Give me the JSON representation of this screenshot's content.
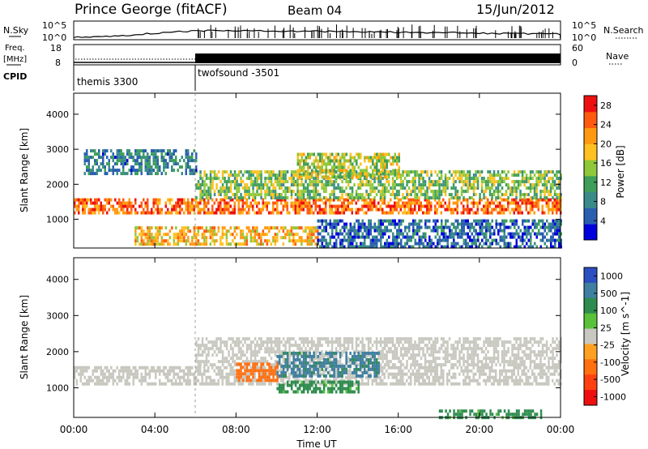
{
  "header": {
    "station": "Prince George (fitACF)",
    "beam": "Beam 04",
    "date": "15/Jun/2012"
  },
  "panels": {
    "nsky_label": "N.Sky",
    "nsky_ticks": [
      "10^5",
      "10^0"
    ],
    "nsearch_label": "N.Search",
    "freq_label_line1": "Freq.",
    "freq_label_line2": "[MHz]",
    "freq_ticks": [
      "18",
      "8"
    ],
    "nave_label": "Nave",
    "nave_ticks": [
      "60",
      "0"
    ],
    "cpid_label": "CPID",
    "cpid_segments": [
      {
        "name": "themis 3300",
        "start": "00:00",
        "end": "06:00"
      },
      {
        "name": "twofsound -3501",
        "start": "06:00",
        "end": "24:00"
      }
    ]
  },
  "colors": {
    "power_scale": [
      "#0000dd",
      "#2a5fb0",
      "#3a8a8a",
      "#3f9f5a",
      "#8fc83a",
      "#ffc020",
      "#ff9a10",
      "#ff5a10",
      "#ee1010"
    ],
    "velocity_scale": [
      "#2b4ec0",
      "#3f7fa0",
      "#2e8c4e",
      "#5ac23a",
      "#c8c8c0",
      "#ffa020",
      "#ff7010",
      "#ff4010",
      "#ee1010"
    ]
  },
  "chart_data": [
    {
      "type": "heatmap",
      "panel": "power",
      "xlabel": "Time UT",
      "ylabel": "Slant Range [km]",
      "x_ticks": [
        "00:00",
        "04:00",
        "08:00",
        "12:00",
        "16:00",
        "20:00",
        "00:00"
      ],
      "x_range_hours": [
        0,
        24
      ],
      "y_ticks": [
        1000,
        2000,
        3000,
        4000
      ],
      "ylim": [
        180,
        4600
      ],
      "colorbar_label": "Power [dB]",
      "colorbar_ticks": [
        4,
        8,
        12,
        16,
        20,
        24,
        28
      ],
      "colorbar_range": [
        0,
        30
      ],
      "echo_bands": [
        {
          "t_start": 0.0,
          "t_end": 24.0,
          "range_start": 1150,
          "range_end": 1600,
          "power": 24
        },
        {
          "t_start": 6.0,
          "t_end": 24.0,
          "range_start": 1600,
          "range_end": 2400,
          "power": 14
        },
        {
          "t_start": 11.0,
          "t_end": 16.0,
          "range_start": 2200,
          "range_end": 2900,
          "power": 16
        },
        {
          "t_start": 0.5,
          "t_end": 6.0,
          "range_start": 2300,
          "range_end": 3000,
          "power": 8
        },
        {
          "t_start": 3.0,
          "t_end": 12.0,
          "range_start": 300,
          "range_end": 800,
          "power": 20
        },
        {
          "t_start": 12.0,
          "t_end": 24.0,
          "range_start": 200,
          "range_end": 1000,
          "power": 6
        }
      ]
    },
    {
      "type": "heatmap",
      "panel": "velocity",
      "xlabel": "Time UT",
      "ylabel": "Slant Range [km]",
      "x_ticks": [
        "00:00",
        "04:00",
        "08:00",
        "12:00",
        "16:00",
        "20:00",
        "00:00"
      ],
      "x_range_hours": [
        0,
        24
      ],
      "y_ticks": [
        1000,
        2000,
        3000,
        4000
      ],
      "ylim": [
        180,
        4600
      ],
      "colorbar_label": "Velocity [m s^-1]",
      "colorbar_ticks": [
        1000,
        500,
        100,
        25,
        -25,
        -100,
        -500,
        -1000
      ],
      "colorbar_range": [
        -1000,
        1000
      ],
      "echo_bands": [
        {
          "t_start": 0.0,
          "t_end": 24.0,
          "range_start": 1150,
          "range_end": 1600,
          "velocity": 0
        },
        {
          "t_start": 6.0,
          "t_end": 24.0,
          "range_start": 1600,
          "range_end": 2400,
          "velocity": 0
        },
        {
          "t_start": 10.0,
          "t_end": 15.0,
          "range_start": 1300,
          "range_end": 2000,
          "velocity": 700
        },
        {
          "t_start": 10.0,
          "t_end": 14.0,
          "range_start": 900,
          "range_end": 1200,
          "velocity": 150
        },
        {
          "t_start": 8.0,
          "t_end": 10.0,
          "range_start": 1200,
          "range_end": 1700,
          "velocity": -200
        },
        {
          "t_start": 18.0,
          "t_end": 23.0,
          "range_start": 200,
          "range_end": 400,
          "velocity": 150
        }
      ]
    }
  ]
}
